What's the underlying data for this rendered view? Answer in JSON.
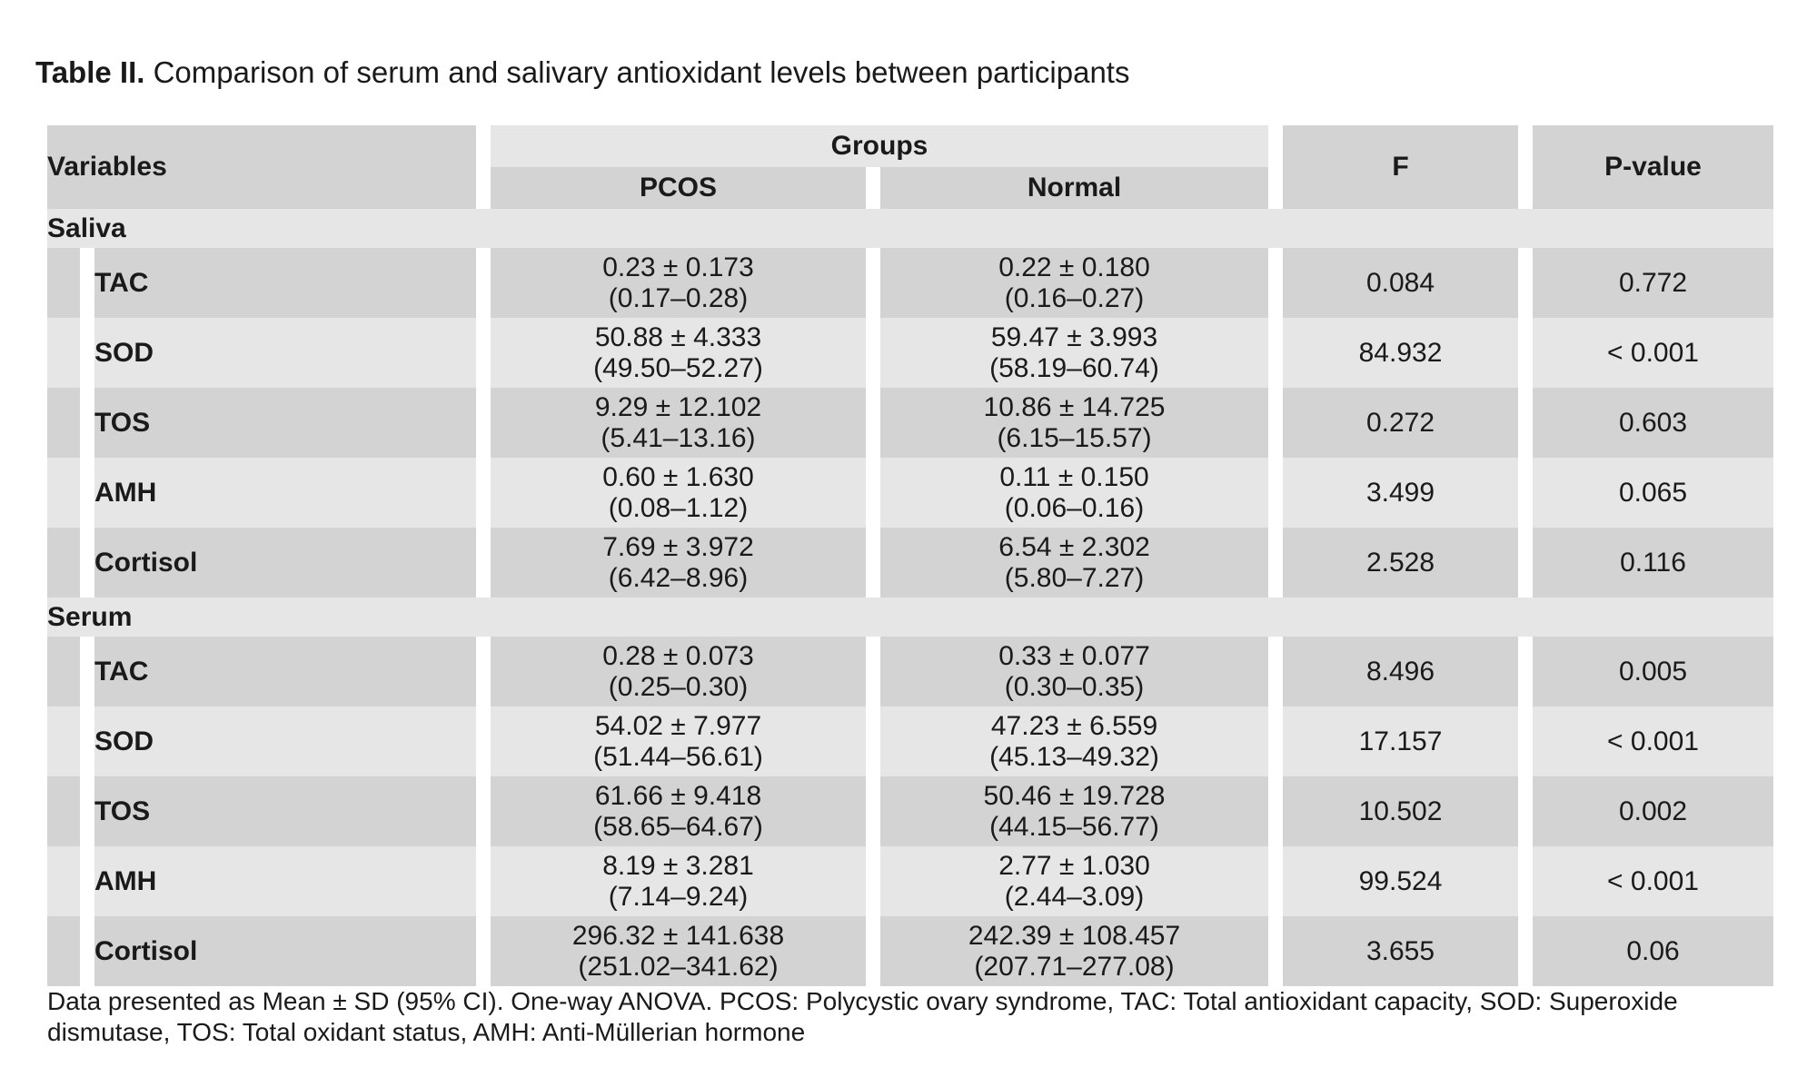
{
  "caption": {
    "lead": "Table II.",
    "text": " Comparison of serum and salivary antioxidant levels between participants"
  },
  "header": {
    "variables": "Variables",
    "groups": "Groups",
    "pcos": "PCOS",
    "normal": "Normal",
    "f": "F",
    "pvalue": "P-value"
  },
  "sections": [
    {
      "label": "Saliva",
      "rows": [
        {
          "name": "TAC",
          "pcos_mean": "0.23 ± 0.173",
          "pcos_ci": "(0.17–0.28)",
          "normal_mean": "0.22 ± 0.180",
          "normal_ci": "(0.16–0.27)",
          "f": "0.084",
          "p": "0.772"
        },
        {
          "name": "SOD",
          "pcos_mean": "50.88 ± 4.333",
          "pcos_ci": "(49.50–52.27)",
          "normal_mean": "59.47 ± 3.993",
          "normal_ci": "(58.19–60.74)",
          "f": "84.932",
          "p": "< 0.001"
        },
        {
          "name": "TOS",
          "pcos_mean": "9.29 ± 12.102",
          "pcos_ci": "(5.41–13.16)",
          "normal_mean": "10.86 ± 14.725",
          "normal_ci": "(6.15–15.57)",
          "f": "0.272",
          "p": "0.603"
        },
        {
          "name": "AMH",
          "pcos_mean": "0.60 ± 1.630",
          "pcos_ci": "(0.08–1.12)",
          "normal_mean": "0.11 ± 0.150",
          "normal_ci": "(0.06–0.16)",
          "f": "3.499",
          "p": "0.065"
        },
        {
          "name": "Cortisol",
          "pcos_mean": "7.69 ± 3.972",
          "pcos_ci": "(6.42–8.96)",
          "normal_mean": "6.54 ± 2.302",
          "normal_ci": "(5.80–7.27)",
          "f": "2.528",
          "p": "0.116"
        }
      ]
    },
    {
      "label": "Serum",
      "rows": [
        {
          "name": "TAC",
          "pcos_mean": "0.28 ± 0.073",
          "pcos_ci": "(0.25–0.30)",
          "normal_mean": "0.33 ± 0.077",
          "normal_ci": "(0.30–0.35)",
          "f": "8.496",
          "p": "0.005"
        },
        {
          "name": "SOD",
          "pcos_mean": "54.02 ± 7.977",
          "pcos_ci": "(51.44–56.61)",
          "normal_mean": "47.23 ± 6.559",
          "normal_ci": "(45.13–49.32)",
          "f": "17.157",
          "p": "< 0.001"
        },
        {
          "name": "TOS",
          "pcos_mean": "61.66 ± 9.418",
          "pcos_ci": "(58.65–64.67)",
          "normal_mean": "50.46 ± 19.728",
          "normal_ci": "(44.15–56.77)",
          "f": "10.502",
          "p": "0.002"
        },
        {
          "name": "AMH",
          "pcos_mean": "8.19 ± 3.281",
          "pcos_ci": "(7.14–9.24)",
          "normal_mean": "2.77 ± 1.030",
          "normal_ci": "(2.44–3.09)",
          "f": "99.524",
          "p": "< 0.001"
        },
        {
          "name": "Cortisol",
          "pcos_mean": "296.32 ± 141.638",
          "pcos_ci": "(251.02–341.62)",
          "normal_mean": "242.39 ± 108.457",
          "normal_ci": "(207.71–277.08)",
          "f": "3.655",
          "p": "0.06"
        }
      ]
    }
  ],
  "footnote": "Data presented as Mean ± SD (95% CI). One-way ANOVA. PCOS: Polycystic ovary syndrome, TAC: Total antioxidant capacity, SOD: Superoxide dismutase, TOS: Total oxidant status, AMH: Anti-Müllerian hormone"
}
